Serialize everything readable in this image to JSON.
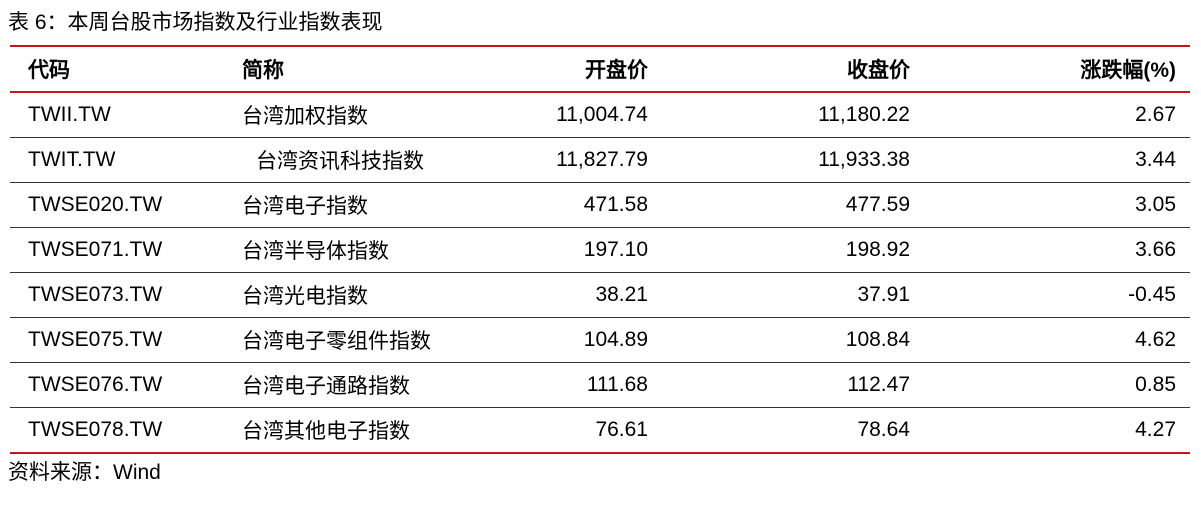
{
  "title": "表 6：本周台股市场指数及行业指数表现",
  "table": {
    "headers": [
      "代码",
      "简称",
      "开盘价",
      "收盘价",
      "涨跌幅(%)"
    ],
    "rows": [
      [
        "TWII.TW",
        "台湾加权指数",
        "11,004.74",
        "11,180.22",
        "2.67"
      ],
      [
        "TWIT.TW",
        "台湾资讯科技指数",
        "11,827.79",
        "11,933.38",
        "3.44"
      ],
      [
        "TWSE020.TW",
        "台湾电子指数",
        "471.58",
        "477.59",
        "3.05"
      ],
      [
        "TWSE071.TW",
        "台湾半导体指数",
        "197.10",
        "198.92",
        "3.66"
      ],
      [
        "TWSE073.TW",
        "台湾光电指数",
        "38.21",
        "37.91",
        "-0.45"
      ],
      [
        "TWSE075.TW",
        "台湾电子零组件指数",
        "104.89",
        "108.84",
        "4.62"
      ],
      [
        "TWSE076.TW",
        "台湾电子通路指数",
        "111.68",
        "112.47",
        "0.85"
      ],
      [
        "TWSE078.TW",
        "台湾其他电子指数",
        "76.61",
        "78.64",
        "4.27"
      ]
    ]
  },
  "source": "资料来源：Wind",
  "colors": {
    "rule": "#c8161d"
  }
}
